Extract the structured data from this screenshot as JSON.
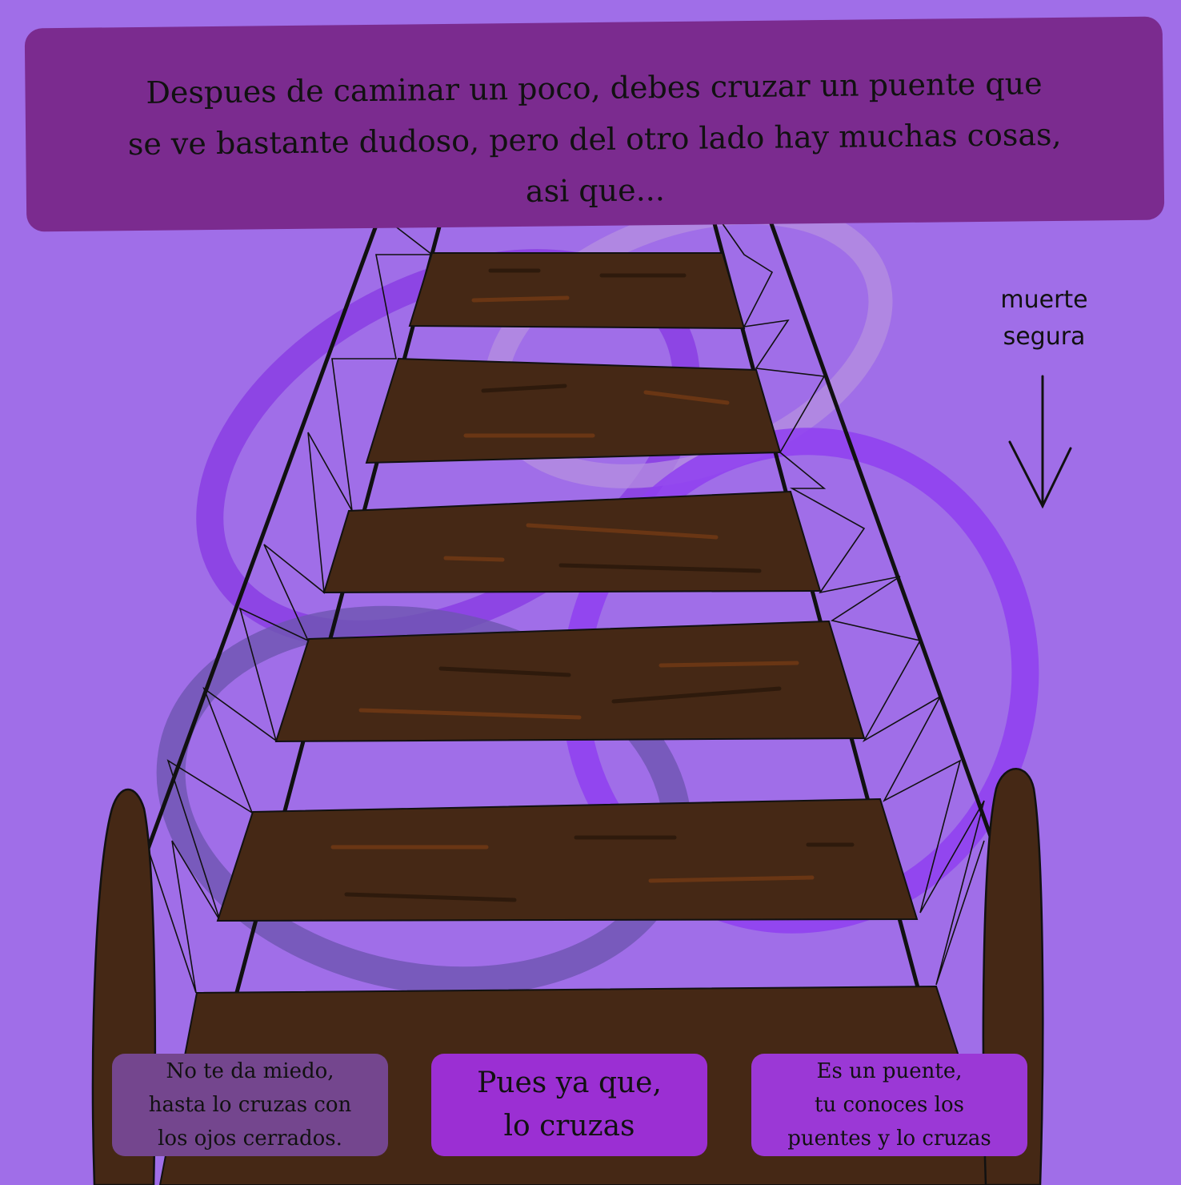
{
  "narration": {
    "text": "Despues de caminar un poco, debes cruzar un puente que\nse ve bastante dudoso, pero del otro lado hay muchas cosas,\nasi que..."
  },
  "warning": {
    "text": "muerte\nsegura",
    "arrow_icon": "arrow-down-icon"
  },
  "choices": [
    {
      "label": "No te da miedo,\nhasta lo cruzas con\nlos ojos cerrados."
    },
    {
      "label": "Pues ya que,\nlo cruzas"
    },
    {
      "label": "Es un puente,\ntu conoces los\npuentes y lo cruzas"
    }
  ],
  "colors": {
    "background": "#a06ee8",
    "panel": "#7b2b8f",
    "plank": "#452815",
    "grain": "#6a3614",
    "choice_1": "#74468e",
    "choice_2": "#9b2fd3",
    "choice_3": "#9b38d6"
  }
}
